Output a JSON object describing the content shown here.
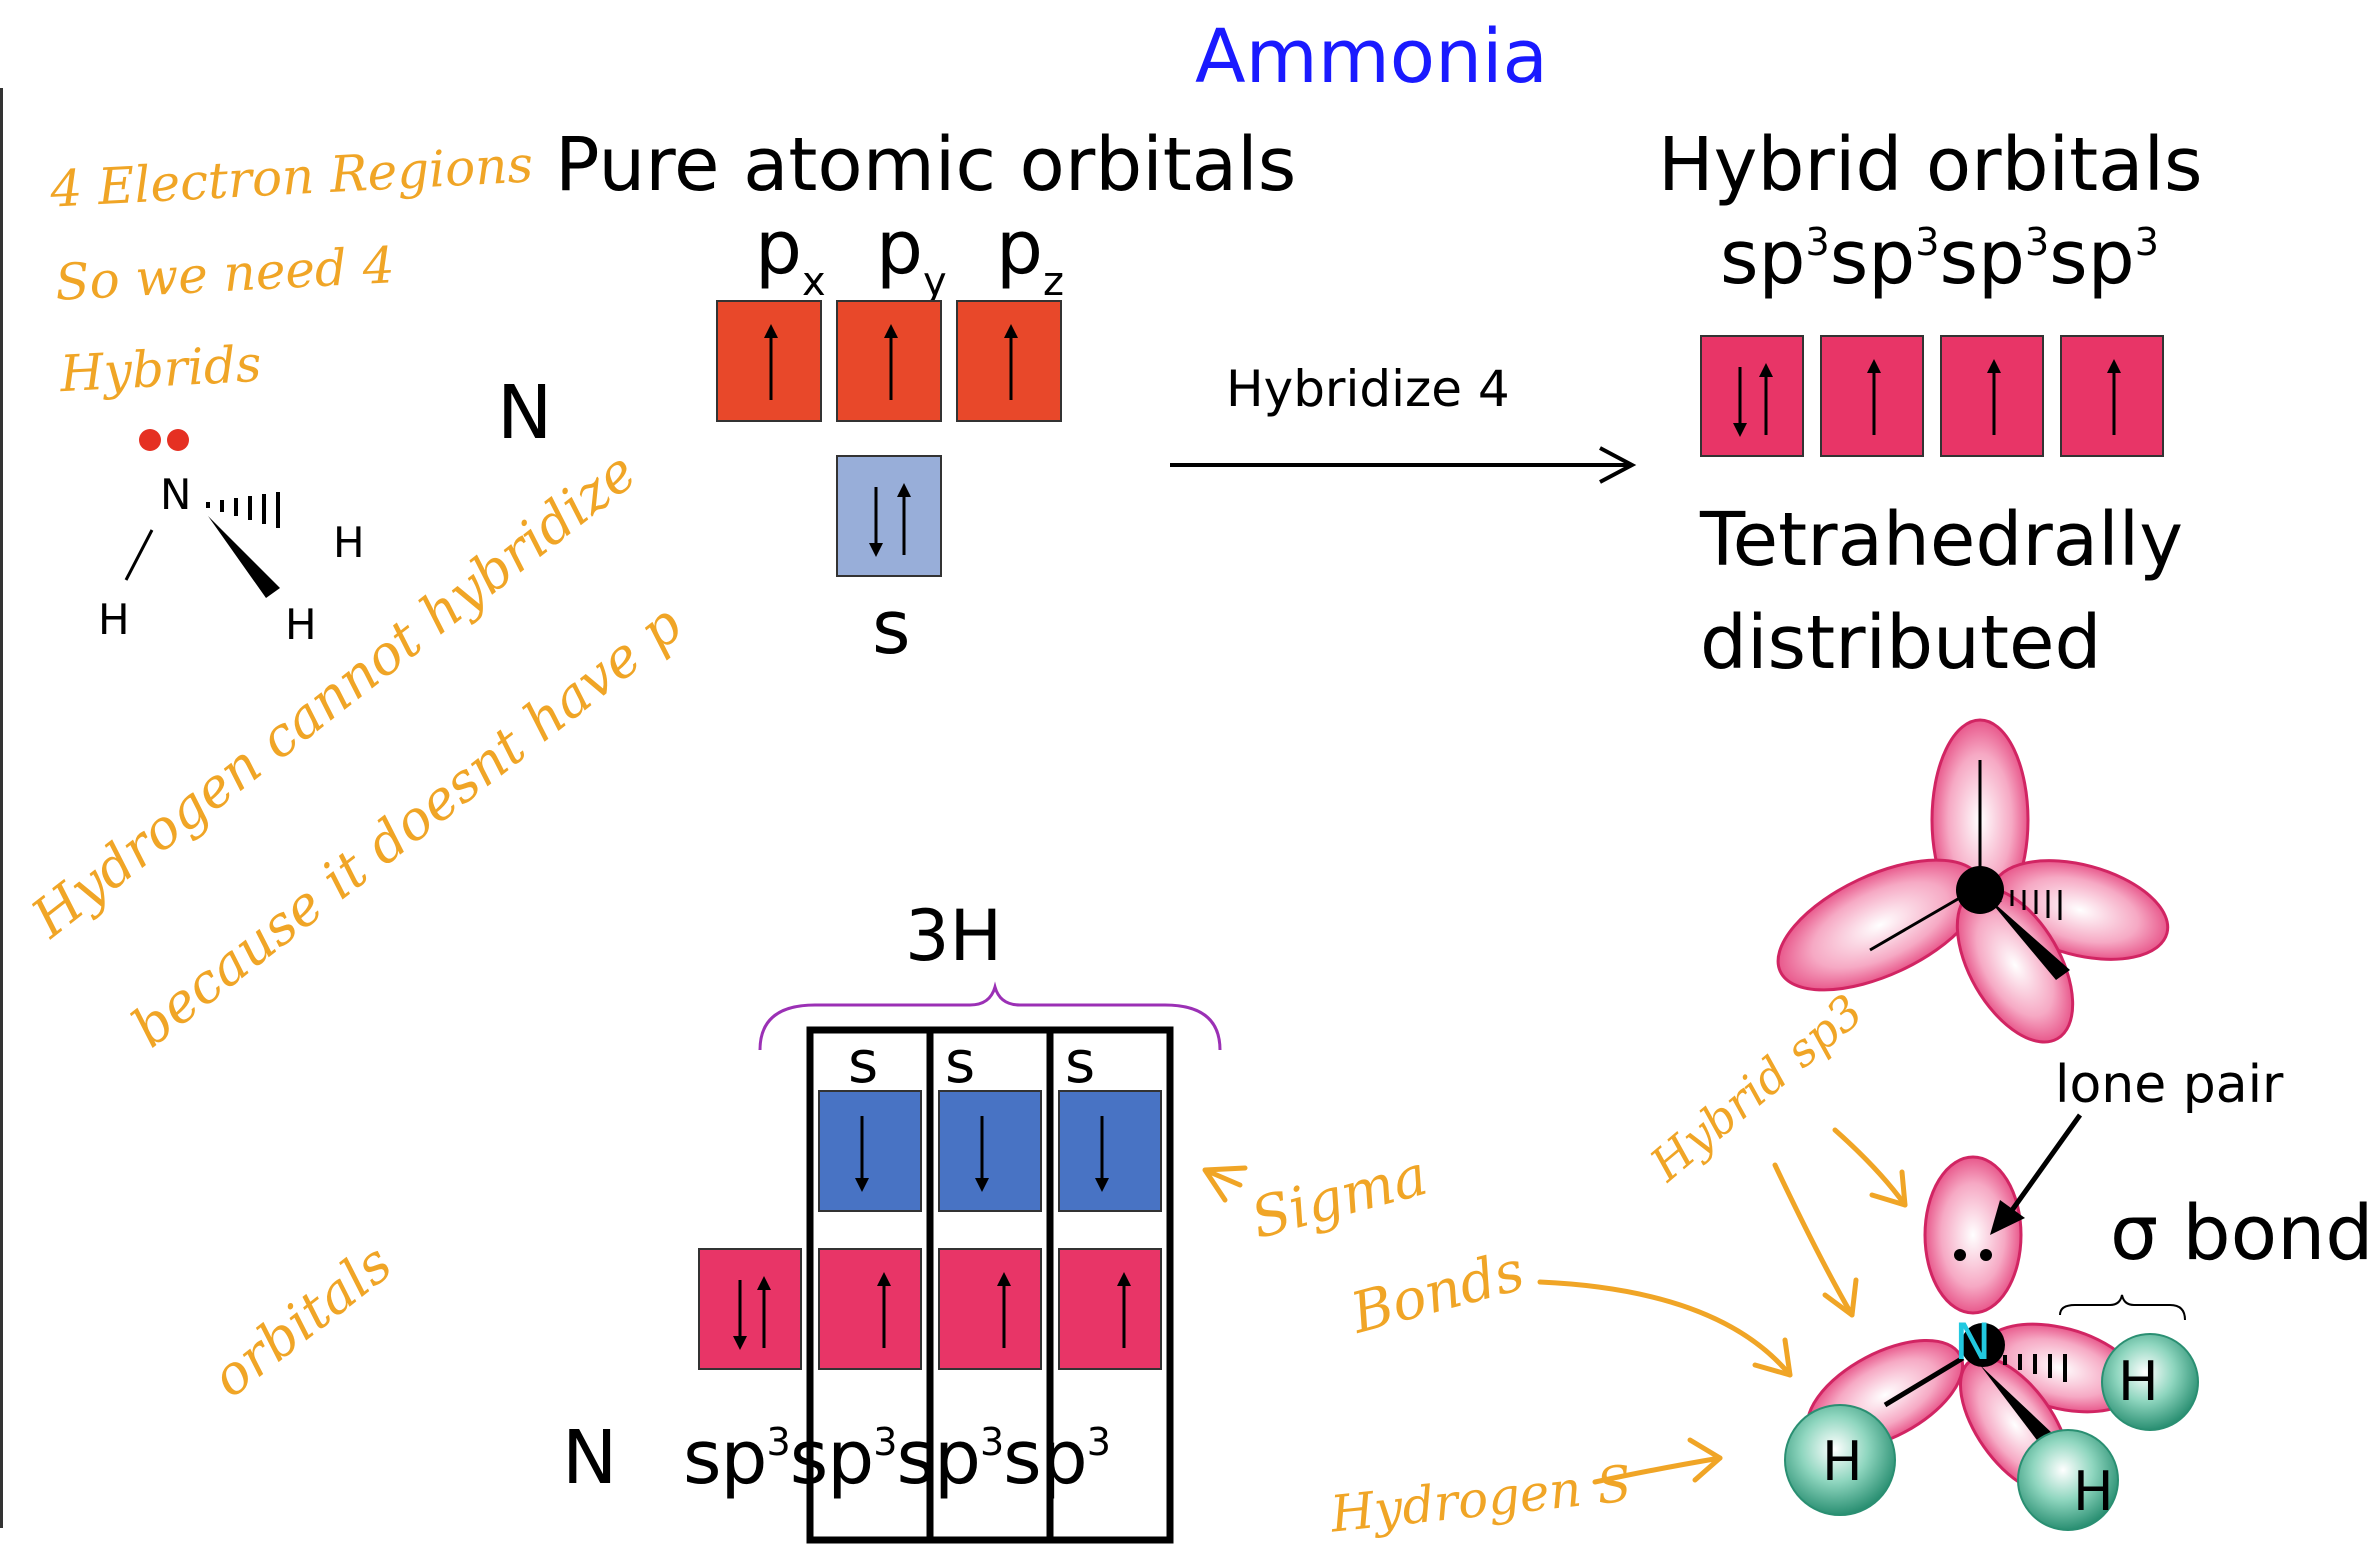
{
  "title": "Ammonia",
  "headings": {
    "pure": "Pure atomic orbitals",
    "hybrid": "Hybrid orbitals"
  },
  "pure_orbitals": {
    "atom": "N",
    "p_base": "p",
    "p_subs": [
      "x",
      "y",
      "z"
    ],
    "s_label": "s"
  },
  "hybrid_orbitals": {
    "base": "sp",
    "sup": "3",
    "count": 4
  },
  "arrow_label": "Hybridize 4",
  "geometry": {
    "line1": "Tetrahedrally",
    "line2": "distributed"
  },
  "structure": {
    "center": "N",
    "h1": "H",
    "h2": "H",
    "h3": "H"
  },
  "bottom": {
    "brace_label": "3H",
    "h_s_labels": [
      "s",
      "s",
      "s"
    ],
    "atom": "N",
    "sp_base": "sp",
    "sp_sup": "3"
  },
  "model": {
    "lone_pair": "lone pair",
    "sigma": "σ bond",
    "center": "N",
    "h": "H"
  },
  "annotations": {
    "electron_regions_1": "4 Electron Regions",
    "electron_regions_2": "So we need 4",
    "electron_regions_3": "Hybrids",
    "hydrogen_1": "Hydrogen cannot hybridize",
    "hydrogen_2": "because it doesnt have p",
    "hydrogen_3": "orbitals",
    "sigma_1": "Sigma",
    "sigma_2": "Bonds",
    "hybrid_sp3": "Hybrid sp3",
    "hydrogen_s": "Hydrogen S"
  },
  "colors": {
    "title": "#1a1aff",
    "p_orbital": "#e8482a",
    "s_orbital_light": "#98aed9",
    "hybrid": "#e83567",
    "h_s_orbital": "#4873c4",
    "handwriting": "#f0a526",
    "lone_pair_dots": "#e53022",
    "h_sphere": "#3aa88a"
  }
}
